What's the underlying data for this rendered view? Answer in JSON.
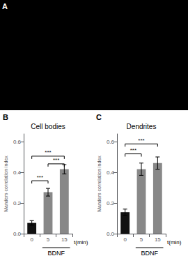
{
  "panel_label": "A",
  "chart_data": [
    {
      "type": "bar",
      "panel_label": "B",
      "title": "Cell bodies",
      "categories": [
        "0",
        "5",
        "15"
      ],
      "values": [
        0.07,
        0.27,
        0.42
      ],
      "errors": [
        0.015,
        0.025,
        0.03
      ],
      "colors": [
        "#111111",
        "#888888",
        "#888888"
      ],
      "ylabel": "Manders correlation index",
      "xlabel": "t(min)",
      "group_label": "BDNF",
      "ylim": [
        0,
        0.65
      ],
      "yticks": [
        {
          "value": 0.0,
          "label": "0.0"
        },
        0.2,
        0.4,
        0.6
      ],
      "grid": false,
      "sig_brackets": [
        {
          "x1": 0,
          "x2": 1,
          "y": 0.345,
          "label": "***"
        },
        {
          "x1": 0,
          "x2": 2,
          "y": 0.505,
          "label": "***"
        },
        {
          "x1": 1,
          "x2": 2,
          "y": 0.455,
          "label": "***"
        }
      ]
    },
    {
      "type": "bar",
      "panel_label": "C",
      "title": "Dendrites",
      "categories": [
        "0",
        "5",
        "15"
      ],
      "values": [
        0.14,
        0.42,
        0.46
      ],
      "errors": [
        0.02,
        0.04,
        0.04
      ],
      "colors": [
        "#111111",
        "#888888",
        "#888888"
      ],
      "ylabel": "Manders correlation index",
      "xlabel": "t(min)",
      "group_label": "BDNF",
      "ylim": [
        0,
        0.65
      ],
      "yticks": [
        {
          "value": 0.0,
          "label": "0.0"
        },
        0.2,
        0.4,
        0.6
      ],
      "grid": false,
      "sig_brackets": [
        {
          "x1": 0,
          "x2": 1,
          "y": 0.52,
          "label": "***"
        },
        {
          "x1": 0,
          "x2": 2,
          "y": 0.585,
          "label": "***"
        }
      ]
    }
  ]
}
